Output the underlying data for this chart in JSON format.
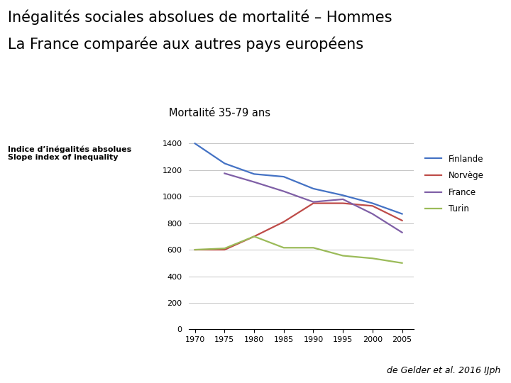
{
  "title_line1": "Inégalités sociales absolues de mortalité – Hommes",
  "title_line2": "La France comparée aux autres pays européens",
  "chart_title": "Mortalité 35-79 ans",
  "ylabel_line1": "Indice d’inégalités absolues",
  "ylabel_line2": "Slope index of inequality",
  "source": "de Gelder et al. 2016 IJph",
  "years": [
    1970,
    1975,
    1980,
    1985,
    1990,
    1995,
    2000,
    2005
  ],
  "Finlande": [
    1400,
    1250,
    1170,
    1150,
    1060,
    1010,
    950,
    870
  ],
  "Norvege": [
    600,
    600,
    700,
    810,
    950,
    950,
    930,
    820
  ],
  "France": [
    null,
    1175,
    1110,
    1040,
    960,
    980,
    870,
    730
  ],
  "Turin": [
    600,
    610,
    700,
    615,
    615,
    555,
    535,
    500
  ],
  "color_Finlande": "#4472C4",
  "color_Norvege": "#BE4B48",
  "color_France": "#7F5FA6",
  "color_Turin": "#9BBB59",
  "ylim": [
    0,
    1500
  ],
  "yticks": [
    0,
    200,
    400,
    600,
    800,
    1000,
    1200,
    1400
  ],
  "title_fontsize": 15,
  "chart_title_fontsize": 10.5,
  "ylabel_fontsize": 8,
  "legend_fontsize": 8.5,
  "source_fontsize": 9,
  "tick_fontsize": 8
}
